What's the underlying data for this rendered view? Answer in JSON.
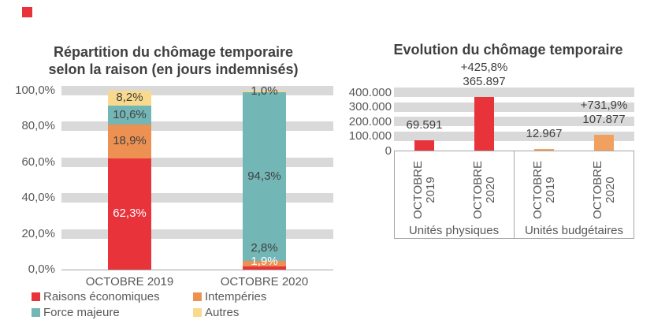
{
  "colors": {
    "red": "#e8333b",
    "orange": "#ed9152",
    "orange_light": "#f0a160",
    "teal": "#73b6b6",
    "yellow": "#f9d98d",
    "band": "#d9d9d9",
    "box_line": "#a6a6a6",
    "text_dark": "#404040",
    "text_axis": "#595959",
    "white": "#ffffff"
  },
  "chart_data": [
    {
      "id": "repartition",
      "type": "bar",
      "stacked": true,
      "unit": "%",
      "title": "Répartition du chômage temporaire\nselon la raison (en jours indemnisés)",
      "title_lines": [
        "Répartition du chômage temporaire",
        "selon la raison (en jours indemnisés)"
      ],
      "categories": [
        "OCTOBRE 2019",
        "OCTOBRE 2020"
      ],
      "series": [
        {
          "name": "Raisons économiques",
          "color": "red",
          "values": [
            62.3,
            1.9
          ],
          "labels": [
            "62,3%",
            "1,9%"
          ],
          "label_colors": [
            "white",
            "white"
          ],
          "label_dy": [
            0,
            -8
          ]
        },
        {
          "name": "Intempéries",
          "color": "orange",
          "values": [
            18.9,
            2.8
          ],
          "labels": [
            "18,9%",
            "2,8%"
          ],
          "label_colors": [
            "dark",
            "dark"
          ],
          "label_dy": [
            0,
            -20
          ]
        },
        {
          "name": "Force majeure",
          "color": "teal",
          "values": [
            10.6,
            94.3
          ],
          "labels": [
            "10,6%",
            "94,3%"
          ],
          "label_colors": [
            "dark",
            "dark"
          ],
          "label_dy": [
            0,
            0
          ]
        },
        {
          "name": "Autres",
          "color": "yellow",
          "values": [
            8.2,
            1.0
          ],
          "labels": [
            "8,2%",
            "1,0%"
          ],
          "label_colors": [
            "dark",
            "dark"
          ],
          "label_dy": [
            0,
            0
          ]
        }
      ],
      "y_ticks": [
        "100,0%",
        "80,0%",
        "60,0%",
        "40,0%",
        "20,0%",
        "0,0%"
      ],
      "ylim": [
        0,
        100
      ],
      "grid": "horizontal-bands",
      "legend_position": "bottom"
    },
    {
      "id": "evolution",
      "type": "bar",
      "title": "Evolution du chômage temporaire",
      "y_ticks": [
        "400.000",
        "300.000",
        "200.000",
        "100.000",
        "0"
      ],
      "ylim": [
        0,
        400000
      ],
      "grid": "horizontal-bands",
      "groups": [
        {
          "label": "Unités physiques",
          "bars": [
            {
              "category": "OCTOBRE 2019",
              "value": 69591,
              "value_label": "69.591",
              "color": "red"
            },
            {
              "category": "OCTOBRE 2020",
              "value": 365897,
              "value_label": "365.897",
              "pct_label": "+425,8%",
              "color": "red"
            }
          ]
        },
        {
          "label": "Unités budgétaires",
          "bars": [
            {
              "category": "OCTOBRE 2019",
              "value": 12967,
              "value_label": "12.967",
              "color": "orange_light"
            },
            {
              "category": "OCTOBRE 2020",
              "value": 107877,
              "value_label": "107.877",
              "pct_label": "+731,9%",
              "color": "orange_light"
            }
          ]
        }
      ]
    }
  ],
  "legend": {
    "items": [
      {
        "label": "Raisons économiques",
        "color": "red"
      },
      {
        "label": "Intempéries",
        "color": "orange"
      },
      {
        "label": "Force majeure",
        "color": "teal"
      },
      {
        "label": "Autres",
        "color": "yellow"
      }
    ]
  }
}
